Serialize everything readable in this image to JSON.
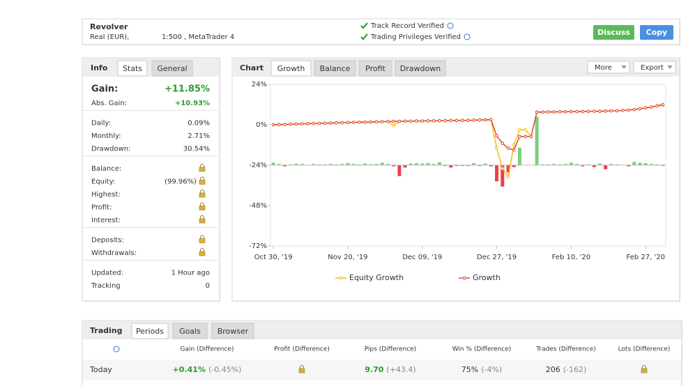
{
  "header": {
    "name": "Revolver",
    "account": "Real (EUR),",
    "leverage": "1:500 , MetaTrader 4",
    "verified": [
      "Track Record Verified",
      "Trading Privileges Verified"
    ],
    "buttons": [
      "Discuss",
      "Copy"
    ]
  },
  "info": {
    "tabs": [
      "Info",
      "Stats",
      "General"
    ],
    "groups": [
      [
        {
          "label": "Gain:",
          "value": "+11.85%"
        },
        {
          "label": "Abs. Gain:",
          "value": "+10.93%"
        }
      ],
      [
        {
          "label": "Daily:",
          "value": "0.09%"
        },
        {
          "label": "Monthly:",
          "value": "2.71%"
        },
        {
          "label": "Drawdown:",
          "value": "30.54%"
        }
      ],
      [
        {
          "label": "Balance:",
          "locked": true
        },
        {
          "label": "Equity:",
          "value": "(99.96%)",
          "locked": true
        },
        {
          "label": "Highest:",
          "locked": true
        },
        {
          "label": "Profit:",
          "locked": true
        },
        {
          "label": "Interest:",
          "locked": true
        }
      ],
      [
        {
          "label": "Deposits:",
          "locked": true
        },
        {
          "label": "Withdrawals:",
          "locked": true
        }
      ],
      [
        {
          "label": "Updated:",
          "value": "1 Hour ago"
        },
        {
          "label": "Tracking",
          "value": "0"
        }
      ]
    ]
  },
  "chart_tabs": [
    "Chart",
    "Growth",
    "Balance",
    "Profit",
    "Drawdown"
  ],
  "chart_buttons": [
    "More",
    "Export"
  ],
  "chart_data": {
    "type": "line",
    "ylim": [
      -72,
      24
    ],
    "yticks": [
      {
        "value": 24,
        "label": "24%"
      },
      {
        "value": 0,
        "label": "0%"
      },
      {
        "value": -24,
        "label": "-24%"
      },
      {
        "value": -48,
        "label": "-48%"
      },
      {
        "value": -72,
        "label": "-72%"
      }
    ],
    "xlim": [
      -0.5,
      68.5
    ],
    "xticks": [
      {
        "value": 0,
        "label": "Oct 30, '19"
      },
      {
        "value": 13,
        "label": "Nov 20, '19"
      },
      {
        "value": 26,
        "label": "Dec 09, '19"
      },
      {
        "value": 39,
        "label": "Dec 27, '19"
      },
      {
        "value": 52,
        "label": "Feb 10, '20"
      },
      {
        "value": 65,
        "label": "Feb 27, '20"
      }
    ],
    "series": [
      {
        "name": "Equity Growth",
        "color": "#f5b800",
        "values": [
          0,
          0.1,
          0.2,
          0.3,
          0.4,
          0.5,
          0.6,
          0.7,
          0.8,
          0.9,
          1.0,
          1.1,
          1.2,
          1.3,
          1.4,
          1.5,
          1.5,
          1.6,
          1.7,
          1.8,
          1.9,
          -0.5,
          2.0,
          2.1,
          2.1,
          2.2,
          2.2,
          2.3,
          2.3,
          2.4,
          2.4,
          2.5,
          2.5,
          2.6,
          2.6,
          2.7,
          2.8,
          2.9,
          3.0,
          -14,
          -26,
          -31,
          -12,
          -3,
          -3,
          -7,
          7.5,
          7.5,
          7.6,
          7.6,
          7.7,
          7.7,
          7.8,
          7.8,
          7.9,
          7.9,
          8.0,
          8.0,
          8.1,
          8.2,
          8.3,
          8.5,
          8.7,
          9.0,
          9.5,
          10.0,
          10.5,
          11.2,
          11.5
        ]
      },
      {
        "name": "Growth",
        "color": "#e03c28",
        "values": [
          0,
          0.1,
          0.2,
          0.3,
          0.4,
          0.5,
          0.6,
          0.7,
          0.8,
          0.9,
          1.0,
          1.1,
          1.2,
          1.3,
          1.4,
          1.5,
          1.5,
          1.6,
          1.7,
          1.8,
          1.9,
          2.0,
          2.0,
          2.1,
          2.1,
          2.2,
          2.2,
          2.3,
          2.3,
          2.4,
          2.4,
          2.5,
          2.5,
          2.6,
          2.6,
          2.7,
          2.8,
          2.9,
          3.0,
          -6.6,
          -11,
          -14,
          -15,
          -7,
          -7,
          -7,
          7.5,
          7.5,
          7.6,
          7.6,
          7.7,
          7.7,
          7.8,
          7.8,
          7.9,
          7.9,
          8.0,
          8.0,
          8.1,
          8.2,
          8.3,
          8.5,
          8.7,
          9.0,
          9.5,
          10.0,
          10.5,
          11.2,
          12.0
        ]
      }
    ],
    "bars": {
      "axis": "y2",
      "colors": [
        "#7ccf7c",
        "#e8404a"
      ],
      "values": [
        0.6,
        0.3,
        -0.3,
        0.2,
        0.4,
        0.3,
        0,
        0.3,
        0.2,
        0.2,
        0.3,
        0.2,
        0.3,
        0.5,
        0.3,
        0.2,
        0.4,
        0.2,
        0.3,
        0.6,
        0.3,
        -0.3,
        -2.7,
        -0.6,
        0.4,
        0.5,
        0.4,
        0.5,
        0.3,
        0.7,
        -0.2,
        -0.6,
        -0.2,
        -0.2,
        -0.2,
        0.5,
        -0.2,
        0.4,
        -0.3,
        -4,
        -5.3,
        -1.8,
        -0.5,
        4.3,
        0,
        0,
        12,
        0.2,
        0.2,
        0.3,
        0.2,
        0.3,
        0.6,
        0.3,
        -0.3,
        0.2,
        -0.5,
        0.4,
        -1,
        0.3,
        0.2,
        0,
        -0.3,
        0.8,
        0.6,
        0.5,
        0.3,
        0.2,
        -0.2
      ]
    },
    "y2lim": [
      -20,
      20
    ],
    "grid": false,
    "legend": "bottom"
  },
  "trading": {
    "tabs": [
      "Trading",
      "Periods",
      "Goals",
      "Browser"
    ],
    "headers": [
      "Gain (Difference)",
      "Profit (Difference)",
      "Pips (Difference)",
      "Win % (Difference)",
      "Trades (Difference)",
      "Lots (Difference)"
    ],
    "rows": [
      {
        "label": "Today",
        "cells": [
          {
            "main": "+0.41%",
            "diff": "(-0.45%)"
          },
          null,
          {
            "main": "9.70",
            "diff": "(+43.4)"
          },
          {
            "main": "75%",
            "diff": "(-4%)"
          },
          {
            "main": "206",
            "diff": "(-162)"
          },
          null
        ]
      }
    ]
  }
}
